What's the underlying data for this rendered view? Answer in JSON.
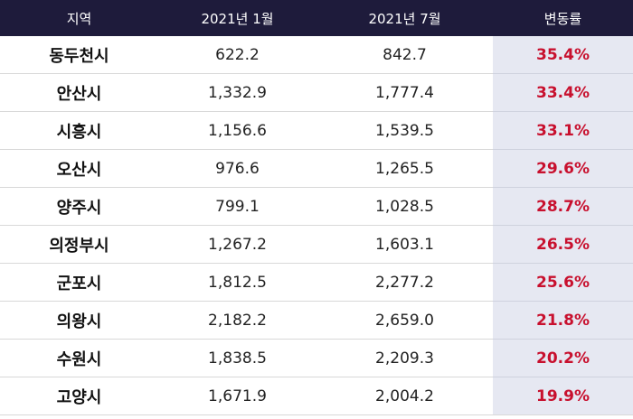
{
  "header": {
    "region": "지역",
    "jan": "2021년 1월",
    "jul": "2021년 7월",
    "rate": "변동률"
  },
  "rows": [
    {
      "region": "동두천시",
      "jan": "622.2",
      "jul": "842.7",
      "rate": "35.4%"
    },
    {
      "region": "안산시",
      "jan": "1,332.9",
      "jul": "1,777.4",
      "rate": "33.4%"
    },
    {
      "region": "시흥시",
      "jan": "1,156.6",
      "jul": "1,539.5",
      "rate": "33.1%"
    },
    {
      "region": "오산시",
      "jan": "976.6",
      "jul": "1,265.5",
      "rate": "29.6%"
    },
    {
      "region": "양주시",
      "jan": "799.1",
      "jul": "1,028.5",
      "rate": "28.7%"
    },
    {
      "region": "의정부시",
      "jan": "1,267.2",
      "jul": "1,603.1",
      "rate": "26.5%"
    },
    {
      "region": "군포시",
      "jan": "1,812.5",
      "jul": "2,277.2",
      "rate": "25.6%"
    },
    {
      "region": "의왕시",
      "jan": "2,182.2",
      "jul": "2,659.0",
      "rate": "21.8%"
    },
    {
      "region": "수원시",
      "jan": "1,838.5",
      "jul": "2,209.3",
      "rate": "20.2%"
    },
    {
      "region": "고양시",
      "jan": "1,671.9",
      "jul": "2,004.2",
      "rate": "19.9%"
    }
  ],
  "colors": {
    "header_bg": "#1e1b3b",
    "rate_text": "#c8102e",
    "rate_bg": "#e6e8f2"
  }
}
